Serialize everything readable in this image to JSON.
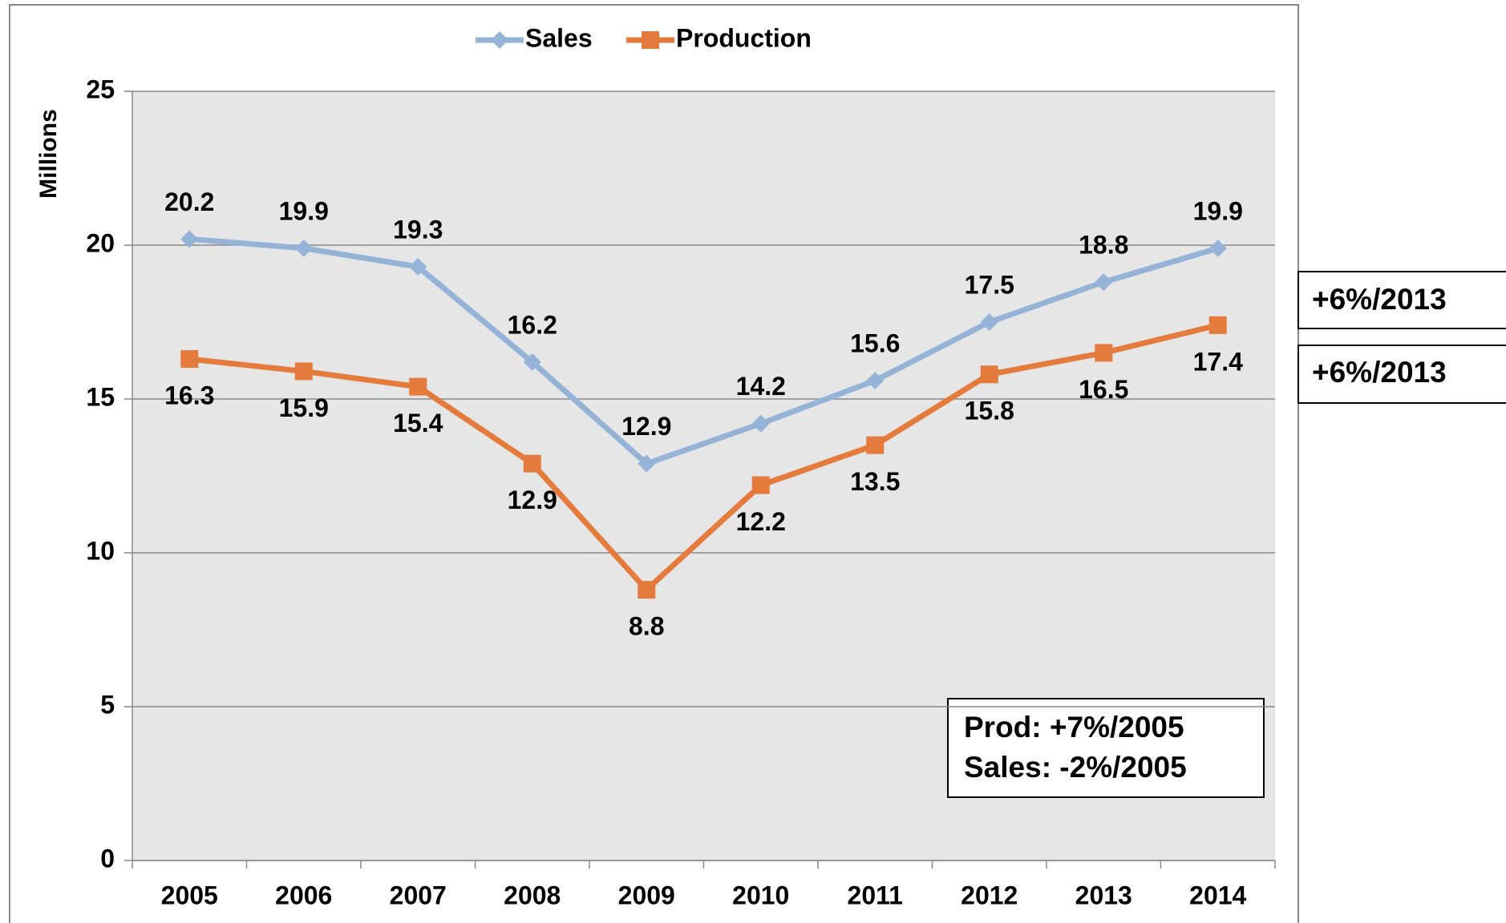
{
  "chart_data": {
    "type": "line",
    "categories": [
      "2005",
      "2006",
      "2007",
      "2008",
      "2009",
      "2010",
      "2011",
      "2012",
      "2013",
      "2014"
    ],
    "series": [
      {
        "name": "Sales",
        "color": "#95b3d7",
        "marker": "diamond",
        "values": [
          20.2,
          19.9,
          19.3,
          16.2,
          12.9,
          14.2,
          15.6,
          17.5,
          18.8,
          19.9
        ]
      },
      {
        "name": "Production",
        "color": "#e47b3c",
        "marker": "square",
        "values": [
          16.3,
          15.9,
          15.4,
          12.9,
          8.8,
          12.2,
          13.5,
          15.8,
          16.5,
          17.4
        ]
      }
    ],
    "y_label": "Millions",
    "ylim": [
      0,
      25
    ],
    "yticks": [
      0,
      5,
      10,
      15,
      20,
      25
    ],
    "grid": true,
    "legend": "top",
    "annotations": [
      "+6%/2013",
      "+6%/2013",
      "Prod: +7%/2005",
      "Sales: -2%/2005"
    ]
  }
}
